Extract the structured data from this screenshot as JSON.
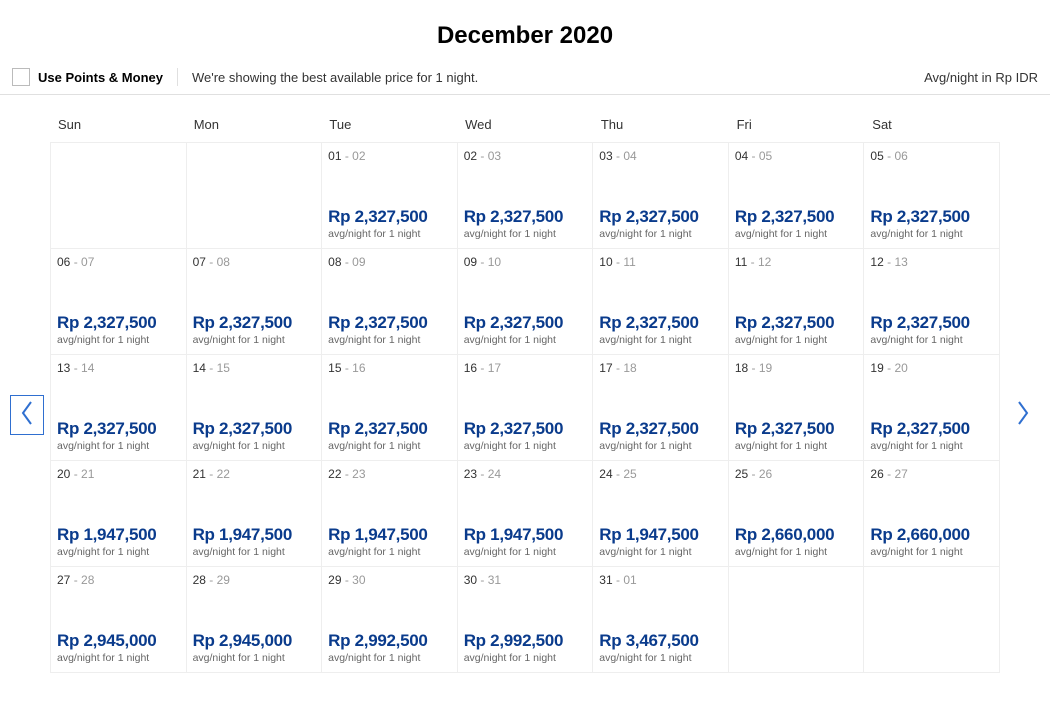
{
  "title": "December 2020",
  "toolbar": {
    "points_label": "Use Points & Money",
    "info_text": "We're showing the best available price for 1 night.",
    "currency_text": "Avg/night in Rp IDR"
  },
  "calendar": {
    "day_headers": [
      "Sun",
      "Mon",
      "Tue",
      "Wed",
      "Thu",
      "Fri",
      "Sat"
    ],
    "sub_text": "avg/night for 1 night",
    "cells": [
      {
        "empty": true
      },
      {
        "empty": true
      },
      {
        "from": "01",
        "to": "02",
        "price": "Rp 2,327,500"
      },
      {
        "from": "02",
        "to": "03",
        "price": "Rp 2,327,500"
      },
      {
        "from": "03",
        "to": "04",
        "price": "Rp 2,327,500"
      },
      {
        "from": "04",
        "to": "05",
        "price": "Rp 2,327,500"
      },
      {
        "from": "05",
        "to": "06",
        "price": "Rp 2,327,500"
      },
      {
        "from": "06",
        "to": "07",
        "price": "Rp 2,327,500"
      },
      {
        "from": "07",
        "to": "08",
        "price": "Rp 2,327,500"
      },
      {
        "from": "08",
        "to": "09",
        "price": "Rp 2,327,500"
      },
      {
        "from": "09",
        "to": "10",
        "price": "Rp 2,327,500"
      },
      {
        "from": "10",
        "to": "11",
        "price": "Rp 2,327,500"
      },
      {
        "from": "11",
        "to": "12",
        "price": "Rp 2,327,500"
      },
      {
        "from": "12",
        "to": "13",
        "price": "Rp 2,327,500"
      },
      {
        "from": "13",
        "to": "14",
        "price": "Rp 2,327,500"
      },
      {
        "from": "14",
        "to": "15",
        "price": "Rp 2,327,500"
      },
      {
        "from": "15",
        "to": "16",
        "price": "Rp 2,327,500"
      },
      {
        "from": "16",
        "to": "17",
        "price": "Rp 2,327,500"
      },
      {
        "from": "17",
        "to": "18",
        "price": "Rp 2,327,500"
      },
      {
        "from": "18",
        "to": "19",
        "price": "Rp 2,327,500"
      },
      {
        "from": "19",
        "to": "20",
        "price": "Rp 2,327,500"
      },
      {
        "from": "20",
        "to": "21",
        "price": "Rp 1,947,500"
      },
      {
        "from": "21",
        "to": "22",
        "price": "Rp 1,947,500"
      },
      {
        "from": "22",
        "to": "23",
        "price": "Rp 1,947,500"
      },
      {
        "from": "23",
        "to": "24",
        "price": "Rp 1,947,500"
      },
      {
        "from": "24",
        "to": "25",
        "price": "Rp 1,947,500"
      },
      {
        "from": "25",
        "to": "26",
        "price": "Rp 2,660,000"
      },
      {
        "from": "26",
        "to": "27",
        "price": "Rp 2,660,000"
      },
      {
        "from": "27",
        "to": "28",
        "price": "Rp 2,945,000"
      },
      {
        "from": "28",
        "to": "29",
        "price": "Rp 2,945,000"
      },
      {
        "from": "29",
        "to": "30",
        "price": "Rp 2,992,500"
      },
      {
        "from": "30",
        "to": "31",
        "price": "Rp 2,992,500"
      },
      {
        "from": "31",
        "to": "01",
        "price": "Rp 3,467,500"
      },
      {
        "empty": true
      },
      {
        "empty": true
      }
    ]
  }
}
